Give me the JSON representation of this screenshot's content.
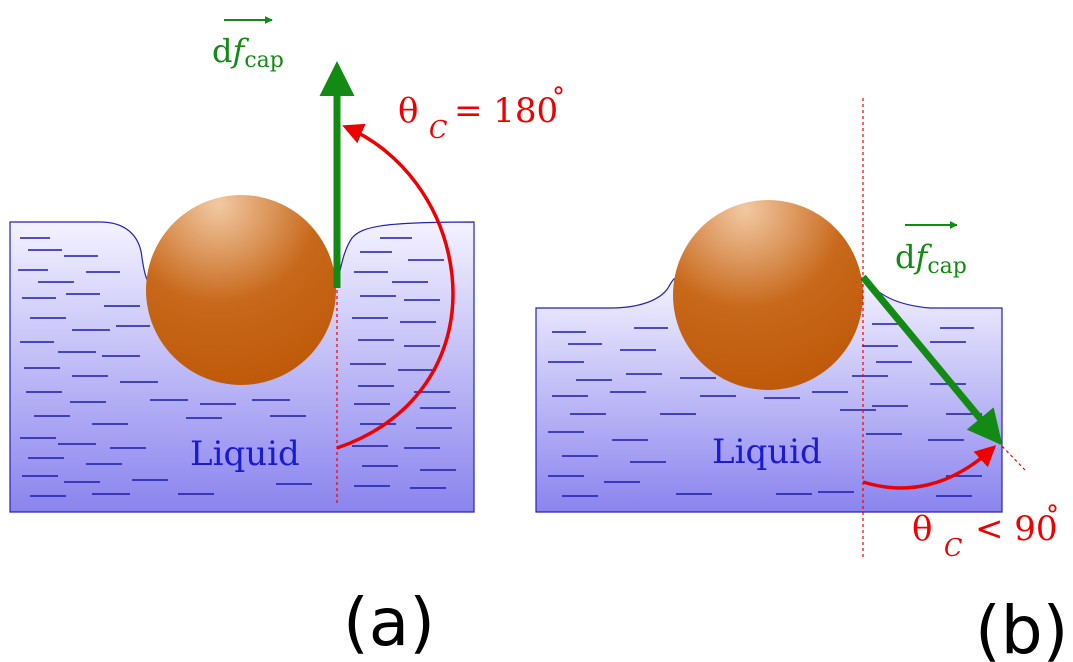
{
  "panels": [
    {
      "id": "a",
      "caption": "(a)",
      "liquid_label": "Liquid",
      "force_label_main": "d",
      "force_label_italic": "f",
      "force_label_sub": "cap",
      "theta_symbol": "θ",
      "theta_sub": "C",
      "theta_relation": "= 180",
      "theta_degree": "°"
    },
    {
      "id": "b",
      "caption": "(b)",
      "liquid_label": "Liquid",
      "force_label_main": "d",
      "force_label_italic": "f",
      "force_label_sub": "cap",
      "theta_symbol": "θ",
      "theta_sub": "C",
      "theta_relation": "< 90",
      "theta_degree": "°"
    }
  ],
  "colors": {
    "liquid_top": "#f4f2ff",
    "liquid_bottom": "#8a84ee",
    "liquid_outline": "#2424b0",
    "dash": "#1b1bb0",
    "sphere_light": "#f2c9a3",
    "sphere_dark": "#bf5a0a",
    "force_arrow": "#138a13",
    "angle_arrow": "#ee0000"
  }
}
